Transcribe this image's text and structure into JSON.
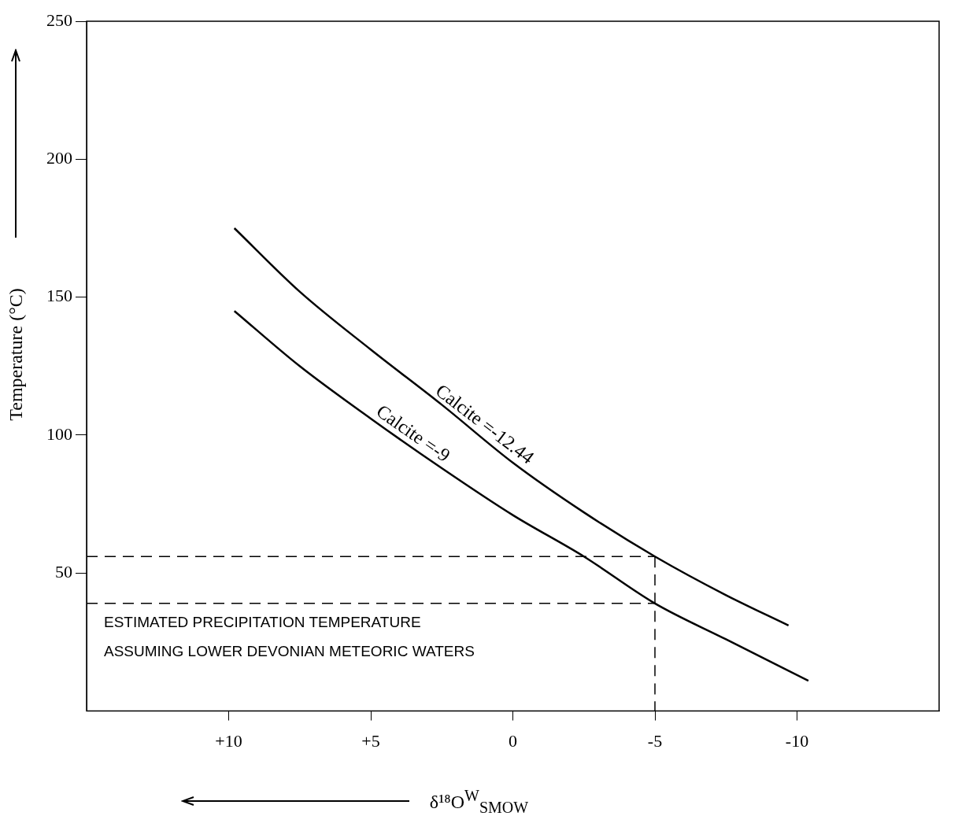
{
  "chart_data": {
    "type": "line",
    "xlabel": "δ¹⁸O$^{W}$$_{SMOW}$",
    "ylabel": "Temperature (°C)",
    "xlim": [
      15,
      -15
    ],
    "xticks": [
      {
        "value": 10,
        "label": "+10"
      },
      {
        "value": 5,
        "label": "+5"
      },
      0,
      -5,
      -10
    ],
    "ylim": [
      0,
      250
    ],
    "yticks": [
      50,
      100,
      150,
      200,
      250
    ],
    "grid": false,
    "legend": false,
    "marker": "none",
    "series": [
      {
        "name": "Calcite =-12.44",
        "color": "#000000",
        "x": [
          9.8,
          7.5,
          5,
          2.5,
          0,
          -2.5,
          -5,
          -7.5,
          -9.7
        ],
        "values": [
          175,
          152,
          131,
          111,
          90,
          72,
          56,
          42,
          31
        ]
      },
      {
        "name": "Calcite =-9",
        "color": "#000000",
        "x": [
          9.8,
          7.5,
          5,
          2.5,
          0,
          -2.5,
          -5,
          -7.5,
          -10.4
        ],
        "values": [
          145,
          125,
          106,
          88,
          71,
          56,
          39,
          26,
          11
        ]
      },
      {
        "color": "#000000",
        "line_style": "dashed",
        "x": [
          15,
          -5
        ],
        "values": [
          56,
          56
        ]
      },
      {
        "color": "#000000",
        "line_style": "dashed",
        "x": [
          15,
          -5
        ],
        "values": [
          39,
          39
        ]
      },
      {
        "color": "#000000",
        "line_style": "dashed",
        "x": [
          -5,
          -5
        ],
        "values": [
          56,
          0
        ]
      }
    ],
    "annotations": [
      "ESTIMATED PRECIPITATION TEMPERATURE",
      "ASSUMING LOWER DEVONIAN METEORIC WATERS"
    ]
  }
}
